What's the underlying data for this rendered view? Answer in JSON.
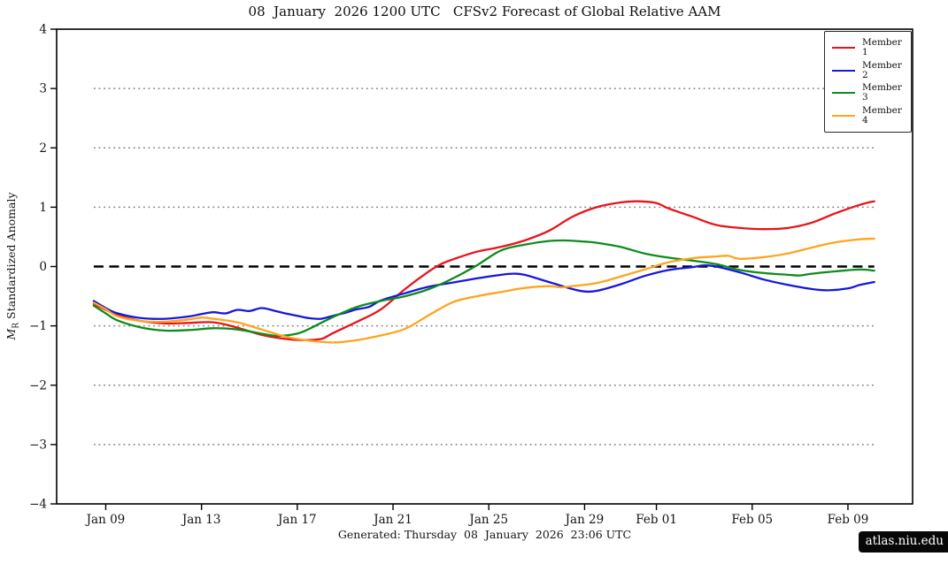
{
  "chart": {
    "title": "08  January  2026 1200 UTC   CFSv2 Forecast of Global Relative AAM",
    "ylabel_symbol": "M",
    "ylabel_sub": "R",
    "ylabel_rest": " Standardized Anomaly",
    "caption": "Generated: Thursday  08  January  2026  23:06 UTC",
    "badge": "atlas.niu.edu"
  },
  "chart_data": {
    "type": "line",
    "title": "08  January  2026 1200 UTC   CFSv2 Forecast of Global Relative AAM",
    "xlabel": "",
    "ylabel": "M_R Standardized Anomaly",
    "ylim": [
      -4,
      4
    ],
    "yticks": [
      -4,
      -3,
      -2,
      -1,
      0,
      1,
      2,
      3,
      4
    ],
    "grid_y_dotted": [
      -3,
      -2,
      -1,
      1,
      2,
      3
    ],
    "zero_line": 0,
    "grid_on": true,
    "legend_position": "top-right",
    "x_unit": "days since 08 January 2026 12UTC (forecast start)",
    "xlim": [
      -1.55,
      34.2
    ],
    "grid_x_span": [
      0,
      32.6
    ],
    "xticks": [
      {
        "day": 0.5,
        "label": "Jan 09"
      },
      {
        "day": 4.5,
        "label": "Jan 13"
      },
      {
        "day": 8.5,
        "label": "Jan 17"
      },
      {
        "day": 12.5,
        "label": "Jan 21"
      },
      {
        "day": 16.5,
        "label": "Jan 25"
      },
      {
        "day": 20.5,
        "label": "Jan 29"
      },
      {
        "day": 23.5,
        "label": "Feb 01"
      },
      {
        "day": 27.5,
        "label": "Feb 05"
      },
      {
        "day": 31.5,
        "label": "Feb 09"
      }
    ],
    "grid_color": "#7f7f7f",
    "zero_line_color": "#000000",
    "series": [
      {
        "name": "Member 1",
        "color": "#e8131b",
        "points": [
          [
            0,
            -0.63
          ],
          [
            0.5,
            -0.73
          ],
          [
            1,
            -0.82
          ],
          [
            2,
            -0.92
          ],
          [
            3,
            -0.96
          ],
          [
            4,
            -0.95
          ],
          [
            5,
            -0.94
          ],
          [
            6,
            -1.03
          ],
          [
            7,
            -1.15
          ],
          [
            8,
            -1.22
          ],
          [
            8.7,
            -1.24
          ],
          [
            9.5,
            -1.22
          ],
          [
            10,
            -1.12
          ],
          [
            11,
            -0.93
          ],
          [
            12,
            -0.72
          ],
          [
            13,
            -0.38
          ],
          [
            14,
            -0.08
          ],
          [
            14.5,
            0.04
          ],
          [
            15,
            0.12
          ],
          [
            16,
            0.25
          ],
          [
            17,
            0.33
          ],
          [
            18,
            0.44
          ],
          [
            19,
            0.6
          ],
          [
            20,
            0.84
          ],
          [
            21,
            1.0
          ],
          [
            22,
            1.08
          ],
          [
            22.7,
            1.1
          ],
          [
            23.5,
            1.07
          ],
          [
            24,
            0.98
          ],
          [
            25,
            0.84
          ],
          [
            26,
            0.7
          ],
          [
            27,
            0.65
          ],
          [
            28,
            0.63
          ],
          [
            29,
            0.65
          ],
          [
            30,
            0.74
          ],
          [
            31,
            0.9
          ],
          [
            32,
            1.04
          ],
          [
            32.6,
            1.1
          ]
        ]
      },
      {
        "name": "Member 2",
        "color": "#1717dd",
        "points": [
          [
            0,
            -0.58
          ],
          [
            0.5,
            -0.7
          ],
          [
            1,
            -0.79
          ],
          [
            2,
            -0.87
          ],
          [
            3,
            -0.88
          ],
          [
            4,
            -0.84
          ],
          [
            4.5,
            -0.8
          ],
          [
            5,
            -0.77
          ],
          [
            5.5,
            -0.79
          ],
          [
            6,
            -0.73
          ],
          [
            6.5,
            -0.75
          ],
          [
            7,
            -0.7
          ],
          [
            7.5,
            -0.74
          ],
          [
            8,
            -0.79
          ],
          [
            8.5,
            -0.83
          ],
          [
            9,
            -0.87
          ],
          [
            9.5,
            -0.88
          ],
          [
            10,
            -0.83
          ],
          [
            10.5,
            -0.78
          ],
          [
            11,
            -0.72
          ],
          [
            11.5,
            -0.68
          ],
          [
            12,
            -0.57
          ],
          [
            13,
            -0.45
          ],
          [
            14,
            -0.34
          ],
          [
            15,
            -0.27
          ],
          [
            16,
            -0.2
          ],
          [
            17,
            -0.14
          ],
          [
            17.5,
            -0.12
          ],
          [
            18,
            -0.14
          ],
          [
            19,
            -0.26
          ],
          [
            20,
            -0.38
          ],
          [
            20.5,
            -0.42
          ],
          [
            21,
            -0.41
          ],
          [
            22,
            -0.3
          ],
          [
            23,
            -0.16
          ],
          [
            24,
            -0.06
          ],
          [
            25,
            -0.01
          ],
          [
            25.5,
            0.02
          ],
          [
            26,
            0.0
          ],
          [
            27,
            -0.1
          ],
          [
            28,
            -0.22
          ],
          [
            29,
            -0.31
          ],
          [
            30,
            -0.38
          ],
          [
            30.7,
            -0.4
          ],
          [
            31.5,
            -0.37
          ],
          [
            32,
            -0.31
          ],
          [
            32.6,
            -0.26
          ]
        ]
      },
      {
        "name": "Member 3",
        "color": "#0e8c1c",
        "points": [
          [
            0,
            -0.66
          ],
          [
            0.5,
            -0.79
          ],
          [
            1,
            -0.91
          ],
          [
            2,
            -1.03
          ],
          [
            3,
            -1.08
          ],
          [
            4,
            -1.07
          ],
          [
            5,
            -1.04
          ],
          [
            6,
            -1.06
          ],
          [
            7,
            -1.13
          ],
          [
            7.7,
            -1.17
          ],
          [
            8.5,
            -1.13
          ],
          [
            9,
            -1.05
          ],
          [
            10,
            -0.85
          ],
          [
            11,
            -0.68
          ],
          [
            12,
            -0.58
          ],
          [
            13,
            -0.5
          ],
          [
            14,
            -0.38
          ],
          [
            15,
            -0.2
          ],
          [
            16,
            0.02
          ],
          [
            17,
            0.27
          ],
          [
            18,
            0.37
          ],
          [
            19,
            0.43
          ],
          [
            19.7,
            0.44
          ],
          [
            20.5,
            0.42
          ],
          [
            21,
            0.4
          ],
          [
            22,
            0.33
          ],
          [
            23,
            0.22
          ],
          [
            24,
            0.15
          ],
          [
            25,
            0.1
          ],
          [
            26,
            0.04
          ],
          [
            27,
            -0.06
          ],
          [
            28,
            -0.11
          ],
          [
            29,
            -0.14
          ],
          [
            29.5,
            -0.15
          ],
          [
            30,
            -0.12
          ],
          [
            31,
            -0.08
          ],
          [
            32,
            -0.05
          ],
          [
            32.6,
            -0.07
          ]
        ]
      },
      {
        "name": "Member 4",
        "color": "#ffa41c",
        "points": [
          [
            0,
            -0.61
          ],
          [
            0.5,
            -0.72
          ],
          [
            1,
            -0.84
          ],
          [
            2,
            -0.92
          ],
          [
            3,
            -0.93
          ],
          [
            4,
            -0.89
          ],
          [
            4.5,
            -0.86
          ],
          [
            5,
            -0.88
          ],
          [
            6,
            -0.94
          ],
          [
            7,
            -1.06
          ],
          [
            8,
            -1.18
          ],
          [
            9,
            -1.25
          ],
          [
            10,
            -1.28
          ],
          [
            11,
            -1.24
          ],
          [
            12,
            -1.16
          ],
          [
            13,
            -1.05
          ],
          [
            14,
            -0.82
          ],
          [
            15,
            -0.6
          ],
          [
            16,
            -0.5
          ],
          [
            17,
            -0.43
          ],
          [
            18,
            -0.36
          ],
          [
            19,
            -0.33
          ],
          [
            19.5,
            -0.35
          ],
          [
            20,
            -0.33
          ],
          [
            21,
            -0.28
          ],
          [
            22,
            -0.17
          ],
          [
            23,
            -0.05
          ],
          [
            24,
            0.07
          ],
          [
            25,
            0.14
          ],
          [
            26,
            0.17
          ],
          [
            26.5,
            0.18
          ],
          [
            27,
            0.13
          ],
          [
            28,
            0.16
          ],
          [
            29,
            0.22
          ],
          [
            30,
            0.32
          ],
          [
            31,
            0.41
          ],
          [
            32,
            0.46
          ],
          [
            32.6,
            0.47
          ]
        ]
      }
    ]
  }
}
